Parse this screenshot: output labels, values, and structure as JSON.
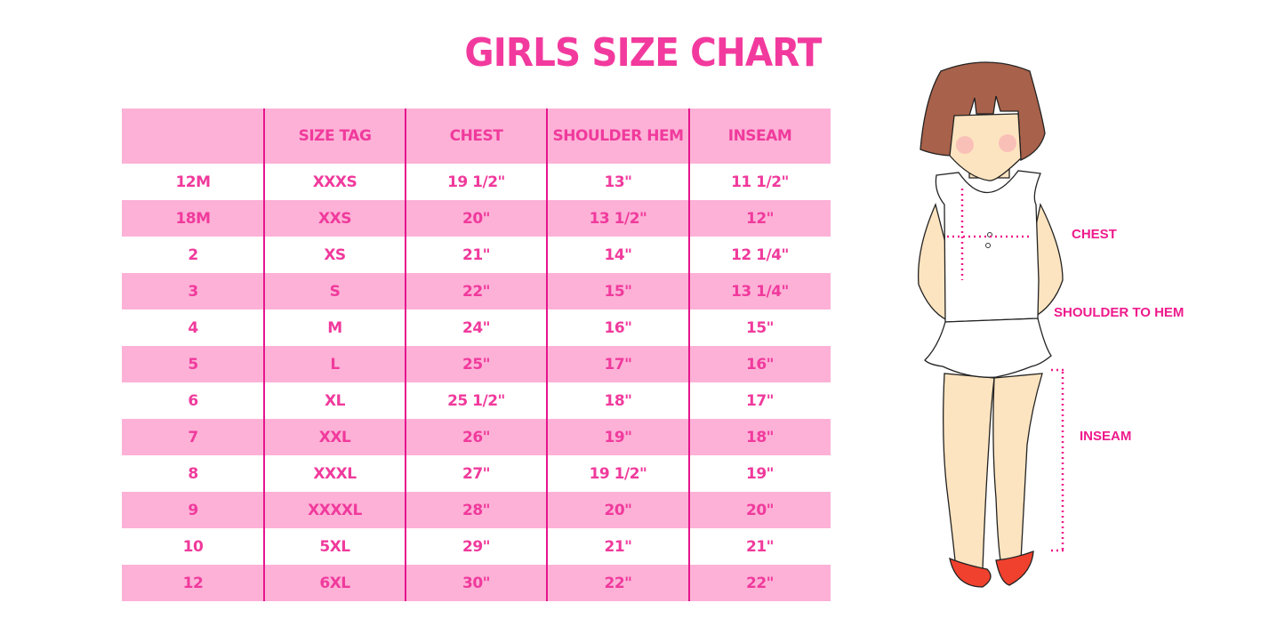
{
  "title": "GIRLS SIZE CHART",
  "table": {
    "headers": [
      "",
      "SIZE TAG",
      "CHEST",
      "SHOULDER HEM",
      "INSEAM"
    ],
    "rows": [
      [
        "12M",
        "XXXS",
        "19 1/2\"",
        "13\"",
        "11 1/2\""
      ],
      [
        "18M",
        "XXS",
        "20\"",
        "13 1/2\"",
        "12\""
      ],
      [
        "2",
        "XS",
        "21\"",
        "14\"",
        "12 1/4\""
      ],
      [
        "3",
        "S",
        "22\"",
        "15\"",
        "13 1/4\""
      ],
      [
        "4",
        "M",
        "24\"",
        "16\"",
        "15\""
      ],
      [
        "5",
        "L",
        "25\"",
        "17\"",
        "16\""
      ],
      [
        "6",
        "XL",
        "25 1/2\"",
        "18\"",
        "17\""
      ],
      [
        "7",
        "XXL",
        "26\"",
        "19\"",
        "18\""
      ],
      [
        "8",
        "XXXL",
        "27\"",
        "19 1/2\"",
        "19\""
      ],
      [
        "9",
        "XXXXL",
        "28\"",
        "20\"",
        "20\""
      ],
      [
        "10",
        "5XL",
        "29\"",
        "21\"",
        "21\""
      ],
      [
        "12",
        "6XL",
        "30\"",
        "22\"",
        "22\""
      ]
    ]
  },
  "illustration": {
    "labels": {
      "chest": "CHEST",
      "shoulder_to_hem": "SHOULDER TO HEM",
      "inseam": "INSEAM"
    }
  },
  "colors": {
    "accent": "#f03a9c",
    "row_pink": "#fdb1d7",
    "divider": "#e5158c",
    "hair": "#a8614a",
    "skin": "#fde4c0",
    "shoes": "#f0412e"
  }
}
